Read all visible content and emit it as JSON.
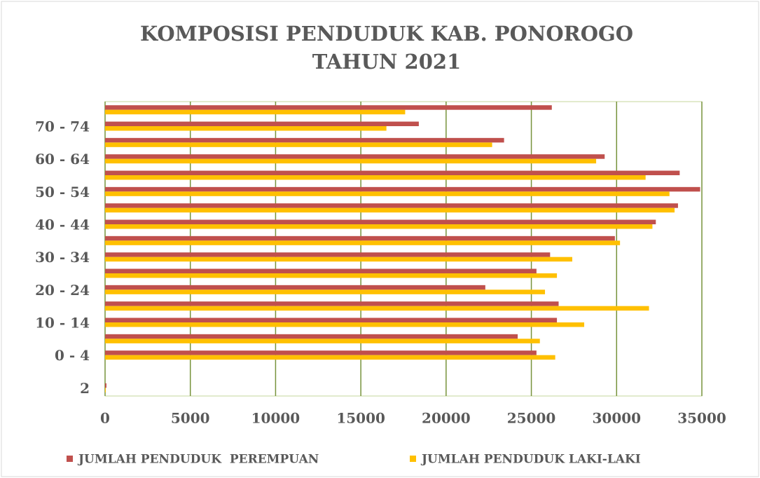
{
  "chart_data": {
    "type": "hbar",
    "title": [
      "KOMPOSISI PENDUDUK KAB. PONOROGO",
      "TAHUN 2021"
    ],
    "categories": [
      "2",
      null,
      "0 - 4",
      null,
      "10 - 14",
      null,
      "20 - 24",
      null,
      "30 - 34",
      null,
      "40 - 44",
      null,
      "50 - 54",
      null,
      "60 - 64",
      null,
      "70 - 74",
      null
    ],
    "series": [
      {
        "name": "JUMLAH PENDUDUK  PEREMPUAN",
        "color": "#c0504d",
        "values": [
          80,
          null,
          25300,
          24200,
          26500,
          26600,
          22300,
          25300,
          26100,
          29900,
          32300,
          33600,
          34900,
          33700,
          29300,
          23400,
          18400,
          26200
        ]
      },
      {
        "name": "JUMLAH PENDUDUK LAKI-LAKI",
        "color": "#ffc000",
        "values": [
          40,
          null,
          26400,
          25500,
          28100,
          31900,
          25800,
          26500,
          27400,
          30200,
          32100,
          33400,
          33100,
          31700,
          28800,
          22700,
          16500,
          17600
        ]
      }
    ],
    "xlim": [
      0,
      35000
    ],
    "xticks": [
      0,
      5000,
      10000,
      15000,
      20000,
      25000,
      30000,
      35000
    ],
    "grid": true,
    "legend": "bottom"
  }
}
